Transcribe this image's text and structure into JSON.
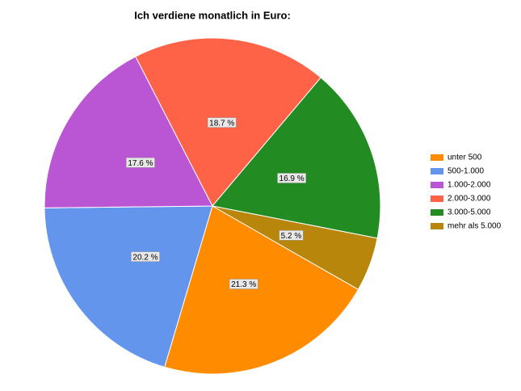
{
  "chart_data": {
    "type": "pie",
    "title": "Ich verdiene monatlich in Euro:",
    "categories": [
      "unter 500",
      "500-1.000",
      "1.000-2.000",
      "2.000-3.000",
      "3.000-5.000",
      "mehr als 5.000"
    ],
    "values": [
      21.3,
      20.2,
      17.6,
      18.7,
      16.9,
      5.2
    ],
    "value_labels": [
      "21.3 %",
      "20.2 %",
      "17.6 %",
      "18.7 %",
      "16.9 %",
      "5.2 %"
    ],
    "colors": [
      "#ff8c00",
      "#6495ed",
      "#ba55d3",
      "#ff6347",
      "#228b22",
      "#b8860b"
    ],
    "legend": "right"
  }
}
